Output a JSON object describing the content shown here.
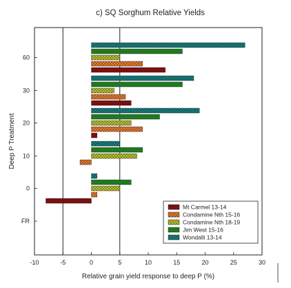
{
  "chart_data": {
    "type": "bar",
    "orientation": "horizontal",
    "title": "c) SQ Sorghum Relative Yields",
    "xlabel": "Relative grain yield response to deep P (%)",
    "ylabel": "Deep P Treatment",
    "xlim": [
      -10,
      30
    ],
    "xticks": [
      -10,
      -5,
      0,
      5,
      10,
      15,
      20,
      25,
      30
    ],
    "vertical_reference_lines": [
      -5,
      5
    ],
    "categories": [
      "60",
      "30",
      "20",
      "10",
      "0",
      "FR"
    ],
    "legend_position": "bottom-right",
    "series": [
      {
        "name": "Mt Carmel 13-14",
        "color": "#7a1010",
        "pattern": "solid",
        "values": [
          13,
          7,
          1,
          null,
          -8,
          null
        ]
      },
      {
        "name": "Condamine Nth 15-16",
        "color": "#e6843a",
        "pattern": "crosshatch",
        "values": [
          9,
          6,
          9,
          -2,
          1,
          null
        ]
      },
      {
        "name": "Condamine Nth 18-19",
        "color": "#c3c93b",
        "pattern": "crosshatch",
        "values": [
          5,
          4,
          7,
          8,
          5,
          null
        ]
      },
      {
        "name": "Jim West 15-16",
        "color": "#1f7a1f",
        "pattern": "solid",
        "values": [
          16,
          16,
          12,
          9,
          7,
          null
        ]
      },
      {
        "name": "Wondalli 13-14",
        "color": "#1f8a8a",
        "pattern": "crosshatch",
        "values": [
          27,
          18,
          19,
          5,
          1,
          null
        ]
      }
    ]
  }
}
